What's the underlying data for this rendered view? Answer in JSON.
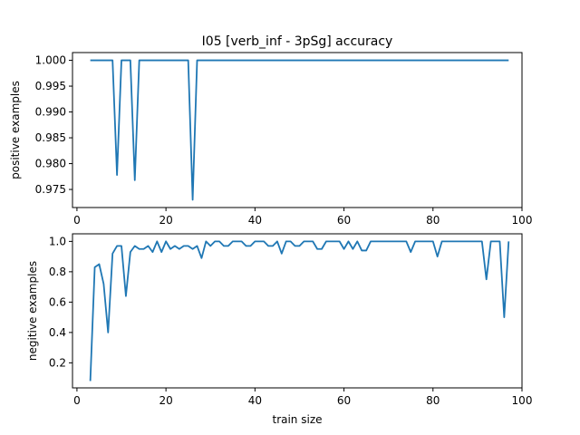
{
  "chart_data": [
    {
      "type": "line",
      "title": "I05 [verb_inf - 3pSg] accuracy",
      "xlabel": "",
      "ylabel": "positive examples",
      "xlim": [
        -1,
        100
      ],
      "ylim": [
        0.9715,
        1.0015
      ],
      "xticks": [
        0,
        20,
        40,
        60,
        80,
        100
      ],
      "yticks": [
        0.975,
        0.98,
        0.985,
        0.99,
        0.995,
        1.0
      ],
      "ytick_labels": [
        "0.975",
        "0.980",
        "0.985",
        "0.990",
        "0.995",
        "1.000"
      ],
      "grid": false,
      "color": "#1f77b4",
      "series": [
        {
          "points": [
            [
              3,
              1.0
            ],
            [
              4,
              1.0
            ],
            [
              5,
              1.0
            ],
            [
              6,
              1.0
            ],
            [
              7,
              1.0
            ],
            [
              8,
              1.0
            ],
            [
              9,
              0.9778
            ],
            [
              10,
              1.0
            ],
            [
              11,
              1.0
            ],
            [
              12,
              1.0
            ],
            [
              13,
              0.9768
            ],
            [
              14,
              1.0
            ],
            [
              15,
              1.0
            ],
            [
              20,
              1.0
            ],
            [
              25,
              1.0
            ],
            [
              26,
              0.973
            ],
            [
              27,
              1.0
            ],
            [
              30,
              1.0
            ],
            [
              40,
              1.0
            ],
            [
              50,
              1.0
            ],
            [
              60,
              1.0
            ],
            [
              70,
              1.0
            ],
            [
              80,
              1.0
            ],
            [
              90,
              1.0
            ],
            [
              97,
              1.0
            ]
          ]
        }
      ]
    },
    {
      "type": "line",
      "xlabel": "train size",
      "ylabel": "negitive examples",
      "xlim": [
        -1,
        100
      ],
      "ylim": [
        0.035,
        1.05
      ],
      "xticks": [
        0,
        20,
        40,
        60,
        80,
        100
      ],
      "yticks": [
        0.2,
        0.4,
        0.6,
        0.8,
        1.0
      ],
      "ytick_labels": [
        "0.2",
        "0.4",
        "0.6",
        "0.8",
        "1.0"
      ],
      "grid": false,
      "color": "#1f77b4",
      "series": [
        {
          "points": [
            [
              3,
              0.08
            ],
            [
              4,
              0.83
            ],
            [
              5,
              0.85
            ],
            [
              6,
              0.72
            ],
            [
              7,
              0.4
            ],
            [
              8,
              0.92
            ],
            [
              9,
              0.97
            ],
            [
              10,
              0.97
            ],
            [
              11,
              0.64
            ],
            [
              12,
              0.93
            ],
            [
              13,
              0.97
            ],
            [
              14,
              0.95
            ],
            [
              15,
              0.95
            ],
            [
              16,
              0.97
            ],
            [
              17,
              0.93
            ],
            [
              18,
              1.0
            ],
            [
              19,
              0.93
            ],
            [
              20,
              1.0
            ],
            [
              21,
              0.95
            ],
            [
              22,
              0.97
            ],
            [
              23,
              0.95
            ],
            [
              24,
              0.97
            ],
            [
              25,
              0.97
            ],
            [
              26,
              0.95
            ],
            [
              27,
              0.97
            ],
            [
              28,
              0.89
            ],
            [
              29,
              1.0
            ],
            [
              30,
              0.97
            ],
            [
              31,
              1.0
            ],
            [
              32,
              1.0
            ],
            [
              33,
              0.97
            ],
            [
              34,
              0.97
            ],
            [
              35,
              1.0
            ],
            [
              36,
              1.0
            ],
            [
              37,
              1.0
            ],
            [
              38,
              0.97
            ],
            [
              39,
              0.97
            ],
            [
              40,
              1.0
            ],
            [
              41,
              1.0
            ],
            [
              42,
              1.0
            ],
            [
              43,
              0.97
            ],
            [
              44,
              0.97
            ],
            [
              45,
              1.0
            ],
            [
              46,
              0.92
            ],
            [
              47,
              1.0
            ],
            [
              48,
              1.0
            ],
            [
              49,
              0.97
            ],
            [
              50,
              0.97
            ],
            [
              51,
              1.0
            ],
            [
              52,
              1.0
            ],
            [
              53,
              1.0
            ],
            [
              54,
              0.95
            ],
            [
              55,
              0.95
            ],
            [
              56,
              1.0
            ],
            [
              57,
              1.0
            ],
            [
              58,
              1.0
            ],
            [
              59,
              1.0
            ],
            [
              60,
              0.95
            ],
            [
              61,
              1.0
            ],
            [
              62,
              0.95
            ],
            [
              63,
              1.0
            ],
            [
              64,
              0.94
            ],
            [
              65,
              0.94
            ],
            [
              66,
              1.0
            ],
            [
              67,
              1.0
            ],
            [
              68,
              1.0
            ],
            [
              69,
              1.0
            ],
            [
              70,
              1.0
            ],
            [
              71,
              1.0
            ],
            [
              72,
              1.0
            ],
            [
              73,
              1.0
            ],
            [
              74,
              1.0
            ],
            [
              75,
              0.93
            ],
            [
              76,
              1.0
            ],
            [
              77,
              1.0
            ],
            [
              78,
              1.0
            ],
            [
              79,
              1.0
            ],
            [
              80,
              1.0
            ],
            [
              81,
              0.9
            ],
            [
              82,
              1.0
            ],
            [
              83,
              1.0
            ],
            [
              84,
              1.0
            ],
            [
              85,
              1.0
            ],
            [
              86,
              1.0
            ],
            [
              87,
              1.0
            ],
            [
              88,
              1.0
            ],
            [
              89,
              1.0
            ],
            [
              90,
              1.0
            ],
            [
              91,
              1.0
            ],
            [
              92,
              0.75
            ],
            [
              93,
              1.0
            ],
            [
              94,
              1.0
            ],
            [
              95,
              1.0
            ],
            [
              96,
              0.5
            ],
            [
              97,
              1.0
            ]
          ]
        }
      ]
    }
  ]
}
